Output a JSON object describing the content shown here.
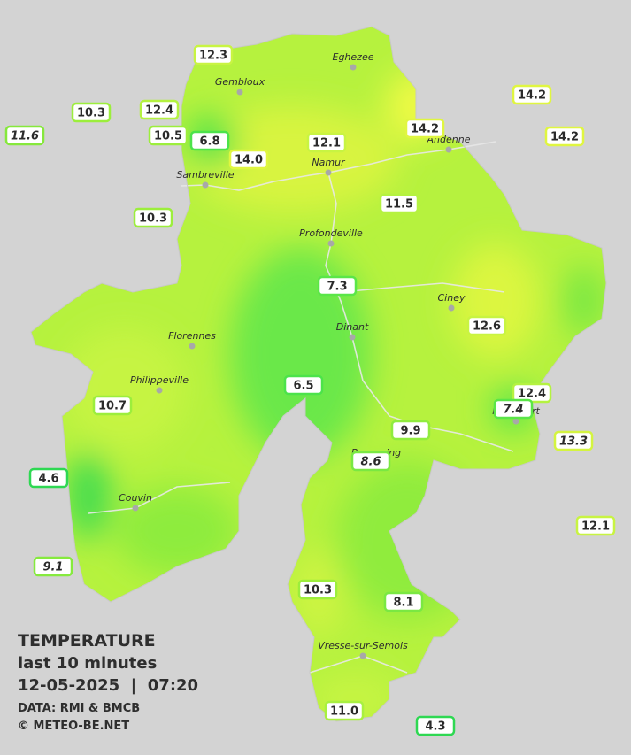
{
  "title": "TEMPERATURE",
  "subtitle": "last 10 minutes",
  "datetime": "12-05-2025  |  07:20",
  "source": "DATA: RMI & BMCB",
  "copyright": "© METEO-BE.NET",
  "cities": [
    "Eghezee",
    "Gembloux",
    "Andenne",
    "Namur",
    "Sambreville",
    "Profondeville",
    "Ciney",
    "Florennes",
    "Dinant",
    "Philippeville",
    "Beauraing",
    "Rochefort",
    "Couvin",
    "Vresse-sur-Semois"
  ],
  "stations": [
    {
      "label": "12.3",
      "italic": false,
      "color": "#c8f442"
    },
    {
      "label": "10.3",
      "italic": false,
      "color": "#9cee3c"
    },
    {
      "label": "11.6",
      "italic": true,
      "color": "#86e83c"
    },
    {
      "label": "12.4",
      "italic": false,
      "color": "#b4f240"
    },
    {
      "label": "10.5",
      "italic": false,
      "color": "#9cee3c"
    },
    {
      "label": "6.8",
      "italic": false,
      "color": "#4ce34a"
    },
    {
      "label": "14.0",
      "italic": false,
      "color": "#e0f640"
    },
    {
      "label": "12.1",
      "italic": false,
      "color": "#c8f442"
    },
    {
      "label": "14.2",
      "italic": false,
      "color": "#e0f640"
    },
    {
      "label": "14.2",
      "italic": false,
      "color": "#e0f640"
    },
    {
      "label": "14.2",
      "italic": false,
      "color": "#e0f640"
    },
    {
      "label": "10.3",
      "italic": false,
      "color": "#9cee3c"
    },
    {
      "label": "11.5",
      "italic": false,
      "color": "#b4f240"
    },
    {
      "label": "7.3",
      "italic": false,
      "color": "#5ae648"
    },
    {
      "label": "12.6",
      "italic": false,
      "color": "#c8f442"
    },
    {
      "label": "6.5",
      "italic": false,
      "color": "#4ce34a"
    },
    {
      "label": "12.4",
      "italic": false,
      "color": "#b4f240"
    },
    {
      "label": "7.4",
      "italic": true,
      "color": "#5ae648"
    },
    {
      "label": "10.7",
      "italic": false,
      "color": "#9cee3c"
    },
    {
      "label": "9.9",
      "italic": false,
      "color": "#90ec3e"
    },
    {
      "label": "8.6",
      "italic": true,
      "color": "#7ae842"
    },
    {
      "label": "13.3",
      "italic": true,
      "color": "#d4f440"
    },
    {
      "label": "4.6",
      "italic": false,
      "color": "#2ed852"
    },
    {
      "label": "12.1",
      "italic": false,
      "color": "#c8f442"
    },
    {
      "label": "9.1",
      "italic": true,
      "color": "#86ea3e"
    },
    {
      "label": "10.3",
      "italic": false,
      "color": "#9cee3c"
    },
    {
      "label": "8.1",
      "italic": false,
      "color": "#7ae842"
    },
    {
      "label": "11.0",
      "italic": false,
      "color": "#a8f040"
    },
    {
      "label": "4.3",
      "italic": false,
      "color": "#2ed852"
    }
  ]
}
